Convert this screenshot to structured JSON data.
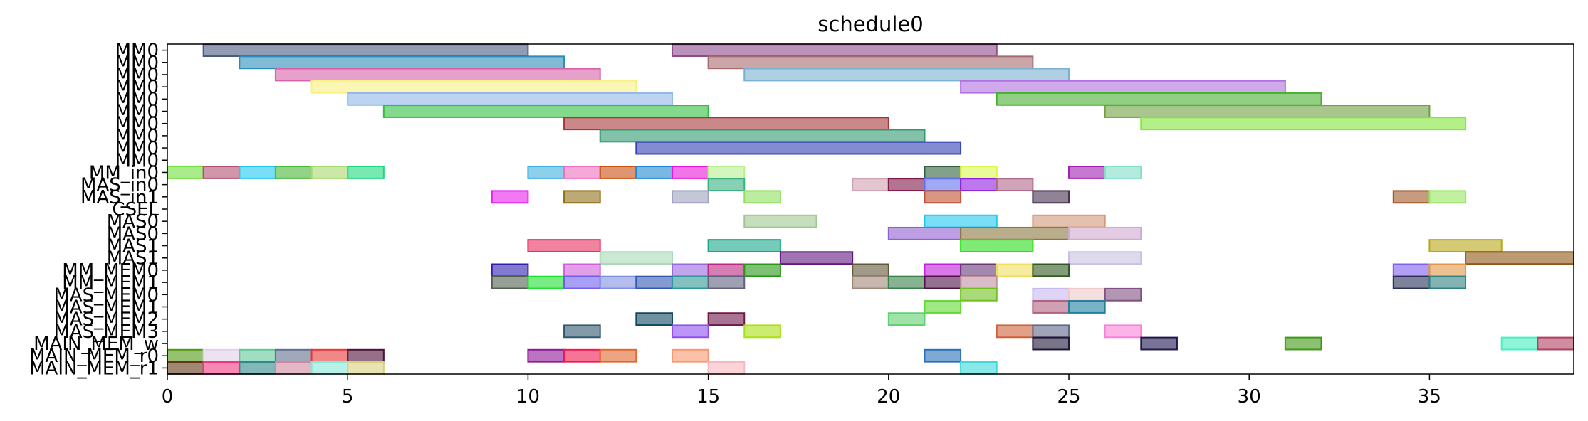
{
  "chart_data": {
    "type": "gantt",
    "title": "schedule0",
    "xlabel": "",
    "ylabel": "",
    "xlim": [
      0,
      39
    ],
    "x_ticks": [
      0,
      5,
      10,
      15,
      20,
      25,
      30,
      35
    ],
    "grid": false,
    "rows": [
      "MM0",
      "MM0",
      "MM0",
      "MM0",
      "MM0",
      "MM0",
      "MM0",
      "MM0",
      "MM0",
      "MM0",
      "MM_in0",
      "MAS_in0",
      "MAS_in1",
      "CSEL",
      "MAS0",
      "MAS0",
      "MAS1",
      "MAS1",
      "MM_MEM0",
      "MM_MEM1",
      "MAS_MEM0",
      "MAS_MEM1",
      "MAS_MEM2",
      "MAS_MEM3",
      "MAIN_MEM_w",
      "MAIN_MEM_r0",
      "MAIN_MEM_r1"
    ],
    "tasks": [
      {
        "row": 0,
        "start": 1,
        "end": 10,
        "color": "#4a5a80"
      },
      {
        "row": 0,
        "start": 14,
        "end": 23,
        "color": "#8e4a8a"
      },
      {
        "row": 1,
        "start": 2,
        "end": 11,
        "color": "#2b8cb8"
      },
      {
        "row": 1,
        "start": 15,
        "end": 24,
        "color": "#a66a70"
      },
      {
        "row": 2,
        "start": 3,
        "end": 12,
        "color": "#d760a8"
      },
      {
        "row": 2,
        "start": 16,
        "end": 25,
        "color": "#7ab0d0"
      },
      {
        "row": 3,
        "start": 4,
        "end": 13,
        "color": "#f8f080"
      },
      {
        "row": 3,
        "start": 22,
        "end": 31,
        "color": "#b070e0"
      },
      {
        "row": 4,
        "start": 5,
        "end": 14,
        "color": "#90b8e8"
      },
      {
        "row": 4,
        "start": 23,
        "end": 32,
        "color": "#48b030"
      },
      {
        "row": 5,
        "start": 6,
        "end": 15,
        "color": "#30c040"
      },
      {
        "row": 5,
        "start": 26,
        "end": 35,
        "color": "#70a040"
      },
      {
        "row": 6,
        "start": 11,
        "end": 20,
        "color": "#a83838"
      },
      {
        "row": 6,
        "start": 27,
        "end": 36,
        "color": "#80e838"
      },
      {
        "row": 7,
        "start": 12,
        "end": 21,
        "color": "#309870"
      },
      {
        "row": 8,
        "start": 13,
        "end": 22,
        "color": "#3040b0"
      },
      {
        "row": 10,
        "start": 0,
        "end": 1,
        "color": "#70e040"
      },
      {
        "row": 10,
        "start": 1,
        "end": 2,
        "color": "#b05070"
      },
      {
        "row": 10,
        "start": 2,
        "end": 3,
        "color": "#20c8f0"
      },
      {
        "row": 10,
        "start": 3,
        "end": 4,
        "color": "#48b838"
      },
      {
        "row": 10,
        "start": 4,
        "end": 5,
        "color": "#a8d870"
      },
      {
        "row": 10,
        "start": 5,
        "end": 6,
        "color": "#20d880"
      },
      {
        "row": 10,
        "start": 10,
        "end": 11,
        "color": "#40b0e0"
      },
      {
        "row": 10,
        "start": 11,
        "end": 12,
        "color": "#f070c0"
      },
      {
        "row": 10,
        "start": 12,
        "end": 13,
        "color": "#c85010"
      },
      {
        "row": 10,
        "start": 13,
        "end": 14,
        "color": "#2088d0"
      },
      {
        "row": 10,
        "start": 14,
        "end": 15,
        "color": "#e818d8"
      },
      {
        "row": 10,
        "start": 15,
        "end": 16,
        "color": "#b8f090"
      },
      {
        "row": 10,
        "start": 21,
        "end": 22,
        "color": "#306040"
      },
      {
        "row": 10,
        "start": 22,
        "end": 23,
        "color": "#d8f850"
      },
      {
        "row": 10,
        "start": 25,
        "end": 26,
        "color": "#a020b0"
      },
      {
        "row": 10,
        "start": 26,
        "end": 27,
        "color": "#80e0c8"
      },
      {
        "row": 11,
        "start": 15,
        "end": 16,
        "color": "#38b080"
      },
      {
        "row": 11,
        "start": 19,
        "end": 20,
        "color": "#d0a0b0"
      },
      {
        "row": 11,
        "start": 20,
        "end": 21,
        "color": "#801848"
      },
      {
        "row": 11,
        "start": 21,
        "end": 22,
        "color": "#6070f0"
      },
      {
        "row": 11,
        "start": 22,
        "end": 23,
        "color": "#9020e0"
      },
      {
        "row": 11,
        "start": 23,
        "end": 24,
        "color": "#b06888"
      },
      {
        "row": 12,
        "start": 9,
        "end": 10,
        "color": "#e820f0"
      },
      {
        "row": 12,
        "start": 11,
        "end": 12,
        "color": "#907018"
      },
      {
        "row": 12,
        "start": 14,
        "end": 15,
        "color": "#a0a0c0"
      },
      {
        "row": 12,
        "start": 16,
        "end": 17,
        "color": "#90e060"
      },
      {
        "row": 12,
        "start": 21,
        "end": 22,
        "color": "#c05030"
      },
      {
        "row": 12,
        "start": 24,
        "end": 25,
        "color": "#483050"
      },
      {
        "row": 12,
        "start": 34,
        "end": 35,
        "color": "#a05828"
      },
      {
        "row": 12,
        "start": 35,
        "end": 36,
        "color": "#98e860"
      },
      {
        "row": 14,
        "start": 16,
        "end": 18,
        "color": "#a0c890"
      },
      {
        "row": 14,
        "start": 21,
        "end": 23,
        "color": "#20c8f0"
      },
      {
        "row": 14,
        "start": 24,
        "end": 26,
        "color": "#d09878"
      },
      {
        "row": 15,
        "start": 20,
        "end": 22,
        "color": "#9060d0"
      },
      {
        "row": 15,
        "start": 22,
        "end": 25,
        "color": "#8a7840"
      },
      {
        "row": 15,
        "start": 25,
        "end": 27,
        "color": "#d0a8d0"
      },
      {
        "row": 16,
        "start": 10,
        "end": 12,
        "color": "#e83060"
      },
      {
        "row": 16,
        "start": 15,
        "end": 17,
        "color": "#18a888"
      },
      {
        "row": 16,
        "start": 22,
        "end": 24,
        "color": "#28e018"
      },
      {
        "row": 16,
        "start": 35,
        "end": 37,
        "color": "#b8a818"
      },
      {
        "row": 17,
        "start": 12,
        "end": 14,
        "color": "#a8d8b8"
      },
      {
        "row": 17,
        "start": 17,
        "end": 19,
        "color": "#601880"
      },
      {
        "row": 17,
        "start": 25,
        "end": 27,
        "color": "#c8c0e0"
      },
      {
        "row": 17,
        "start": 36,
        "end": 39,
        "color": "#905818"
      },
      {
        "row": 18,
        "start": 9,
        "end": 10,
        "color": "#3020b0"
      },
      {
        "row": 18,
        "start": 11,
        "end": 12,
        "color": "#d060d8"
      },
      {
        "row": 18,
        "start": 14,
        "end": 15,
        "color": "#9868e0"
      },
      {
        "row": 18,
        "start": 15,
        "end": 16,
        "color": "#b82880"
      },
      {
        "row": 18,
        "start": 16,
        "end": 17,
        "color": "#289818"
      },
      {
        "row": 18,
        "start": 19,
        "end": 20,
        "color": "#605838"
      },
      {
        "row": 18,
        "start": 21,
        "end": 22,
        "color": "#c020d8"
      },
      {
        "row": 18,
        "start": 22,
        "end": 23,
        "color": "#683878"
      },
      {
        "row": 18,
        "start": 23,
        "end": 24,
        "color": "#f0e060"
      },
      {
        "row": 18,
        "start": 24,
        "end": 25,
        "color": "#305820"
      },
      {
        "row": 18,
        "start": 34,
        "end": 35,
        "color": "#8060f0"
      },
      {
        "row": 18,
        "start": 35,
        "end": 36,
        "color": "#e09848"
      },
      {
        "row": 19,
        "start": 9,
        "end": 10,
        "color": "#506050"
      },
      {
        "row": 19,
        "start": 10,
        "end": 11,
        "color": "#20e030"
      },
      {
        "row": 19,
        "start": 11,
        "end": 12,
        "color": "#7060f0"
      },
      {
        "row": 19,
        "start": 12,
        "end": 13,
        "color": "#8090e0"
      },
      {
        "row": 19,
        "start": 13,
        "end": 14,
        "color": "#3058b0"
      },
      {
        "row": 19,
        "start": 14,
        "end": 15,
        "color": "#309898"
      },
      {
        "row": 19,
        "start": 15,
        "end": 16,
        "color": "#606080"
      },
      {
        "row": 19,
        "start": 19,
        "end": 20,
        "color": "#a08878"
      },
      {
        "row": 19,
        "start": 20,
        "end": 21,
        "color": "#388048"
      },
      {
        "row": 19,
        "start": 21,
        "end": 22,
        "color": "#501048"
      },
      {
        "row": 19,
        "start": 22,
        "end": 23,
        "color": "#c090a0"
      },
      {
        "row": 19,
        "start": 34,
        "end": 35,
        "color": "#283058"
      },
      {
        "row": 19,
        "start": 35,
        "end": 36,
        "color": "#308080"
      },
      {
        "row": 20,
        "start": 22,
        "end": 23,
        "color": "#70c020"
      },
      {
        "row": 20,
        "start": 24,
        "end": 25,
        "color": "#c8b8f0"
      },
      {
        "row": 20,
        "start": 25,
        "end": 26,
        "color": "#f0c8c8"
      },
      {
        "row": 20,
        "start": 26,
        "end": 27,
        "color": "#805080"
      },
      {
        "row": 21,
        "start": 21,
        "end": 22,
        "color": "#60d830"
      },
      {
        "row": 21,
        "start": 24,
        "end": 25,
        "color": "#b06080"
      },
      {
        "row": 21,
        "start": 25,
        "end": 26,
        "color": "#2080a0"
      },
      {
        "row": 22,
        "start": 13,
        "end": 14,
        "color": "#104860"
      },
      {
        "row": 22,
        "start": 15,
        "end": 16,
        "color": "#701848"
      },
      {
        "row": 22,
        "start": 20,
        "end": 21,
        "color": "#60d070"
      },
      {
        "row": 23,
        "start": 11,
        "end": 12,
        "color": "#305870"
      },
      {
        "row": 23,
        "start": 14,
        "end": 15,
        "color": "#9050f0"
      },
      {
        "row": 23,
        "start": 16,
        "end": 17,
        "color": "#a8e010"
      },
      {
        "row": 23,
        "start": 23,
        "end": 24,
        "color": "#d06038"
      },
      {
        "row": 23,
        "start": 24,
        "end": 25,
        "color": "#606888"
      },
      {
        "row": 23,
        "start": 26,
        "end": 27,
        "color": "#f880d8"
      },
      {
        "row": 24,
        "start": 24,
        "end": 25,
        "color": "#201838"
      },
      {
        "row": 24,
        "start": 27,
        "end": 28,
        "color": "#201850"
      },
      {
        "row": 24,
        "start": 31,
        "end": 32,
        "color": "#409818"
      },
      {
        "row": 24,
        "start": 37,
        "end": 38,
        "color": "#48f0c0"
      },
      {
        "row": 24,
        "start": 38,
        "end": 39,
        "color": "#b04060"
      },
      {
        "row": 25,
        "start": 0,
        "end": 1,
        "color": "#509810"
      },
      {
        "row": 25,
        "start": 1,
        "end": 2,
        "color": "#e0d0e8"
      },
      {
        "row": 25,
        "start": 2,
        "end": 3,
        "color": "#60c898"
      },
      {
        "row": 25,
        "start": 3,
        "end": 4,
        "color": "#607090"
      },
      {
        "row": 25,
        "start": 4,
        "end": 5,
        "color": "#e83838"
      },
      {
        "row": 25,
        "start": 5,
        "end": 6,
        "color": "#501038"
      },
      {
        "row": 25,
        "start": 10,
        "end": 11,
        "color": "#901898"
      },
      {
        "row": 25,
        "start": 11,
        "end": 12,
        "color": "#f01850"
      },
      {
        "row": 25,
        "start": 12,
        "end": 13,
        "color": "#e06830"
      },
      {
        "row": 25,
        "start": 14,
        "end": 15,
        "color": "#f89870"
      },
      {
        "row": 25,
        "start": 21,
        "end": 22,
        "color": "#2870b8"
      },
      {
        "row": 26,
        "start": 0,
        "end": 1,
        "color": "#603818"
      },
      {
        "row": 26,
        "start": 1,
        "end": 2,
        "color": "#f03880"
      },
      {
        "row": 26,
        "start": 2,
        "end": 3,
        "color": "#308888"
      },
      {
        "row": 26,
        "start": 3,
        "end": 4,
        "color": "#d088a0"
      },
      {
        "row": 26,
        "start": 4,
        "end": 5,
        "color": "#88e8d8"
      },
      {
        "row": 26,
        "start": 5,
        "end": 6,
        "color": "#d8d080"
      },
      {
        "row": 26,
        "start": 15,
        "end": 16,
        "color": "#f8b8c0"
      },
      {
        "row": 26,
        "start": 22,
        "end": 23,
        "color": "#40d8d8"
      }
    ]
  }
}
